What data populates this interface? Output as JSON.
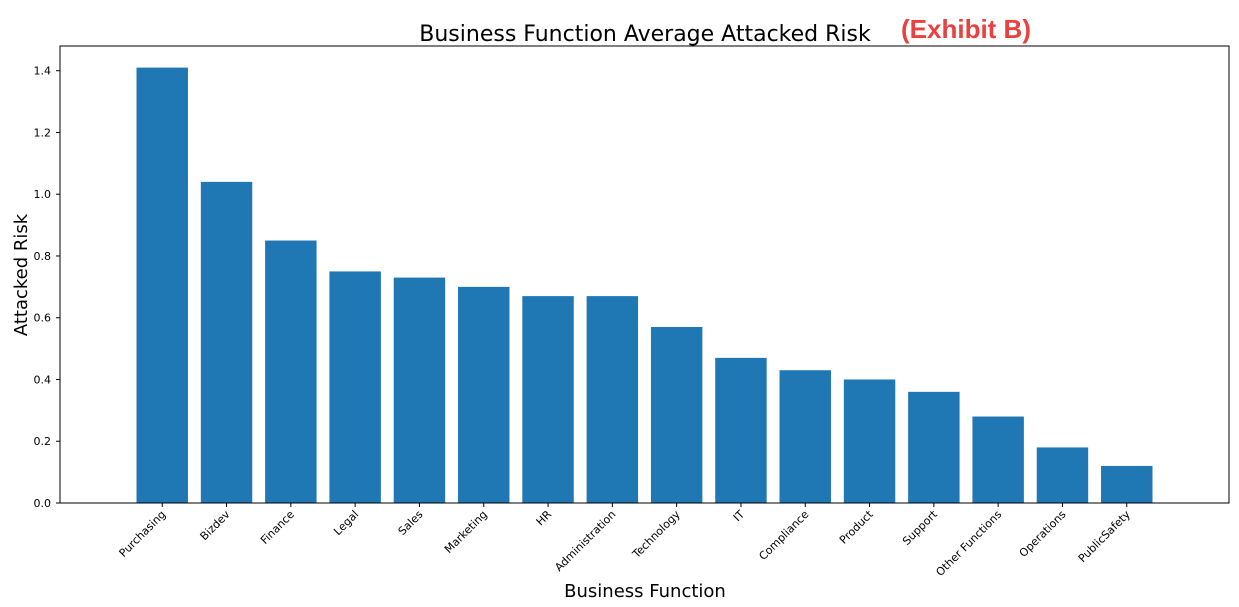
{
  "chart_data": {
    "type": "bar",
    "title": "Business Function Average Attacked Risk",
    "annotation": "(Exhibit B)",
    "x_label": "Business Function",
    "y_label": "Attacked Risk",
    "categories": [
      "Purchasing",
      "Bizdev",
      "Finance",
      "Legal",
      "Sales",
      "Marketing",
      "HR",
      "Administration",
      "Technology",
      "IT",
      "Compliance",
      "Product",
      "Support",
      "Other Functions",
      "Operations",
      "PublicSafety"
    ],
    "values": [
      1.41,
      1.04,
      0.85,
      0.75,
      0.73,
      0.7,
      0.67,
      0.67,
      0.57,
      0.47,
      0.43,
      0.4,
      0.36,
      0.28,
      0.18,
      0.12
    ],
    "color": "#1f77b4",
    "ylim": [
      0,
      1.48
    ],
    "yticks": [
      {
        "value": 0,
        "label": "0.0"
      },
      0.2,
      0.4,
      0.6,
      0.8,
      {
        "value": 1,
        "label": "1.0"
      },
      1.2,
      1.4
    ],
    "grid": false
  }
}
